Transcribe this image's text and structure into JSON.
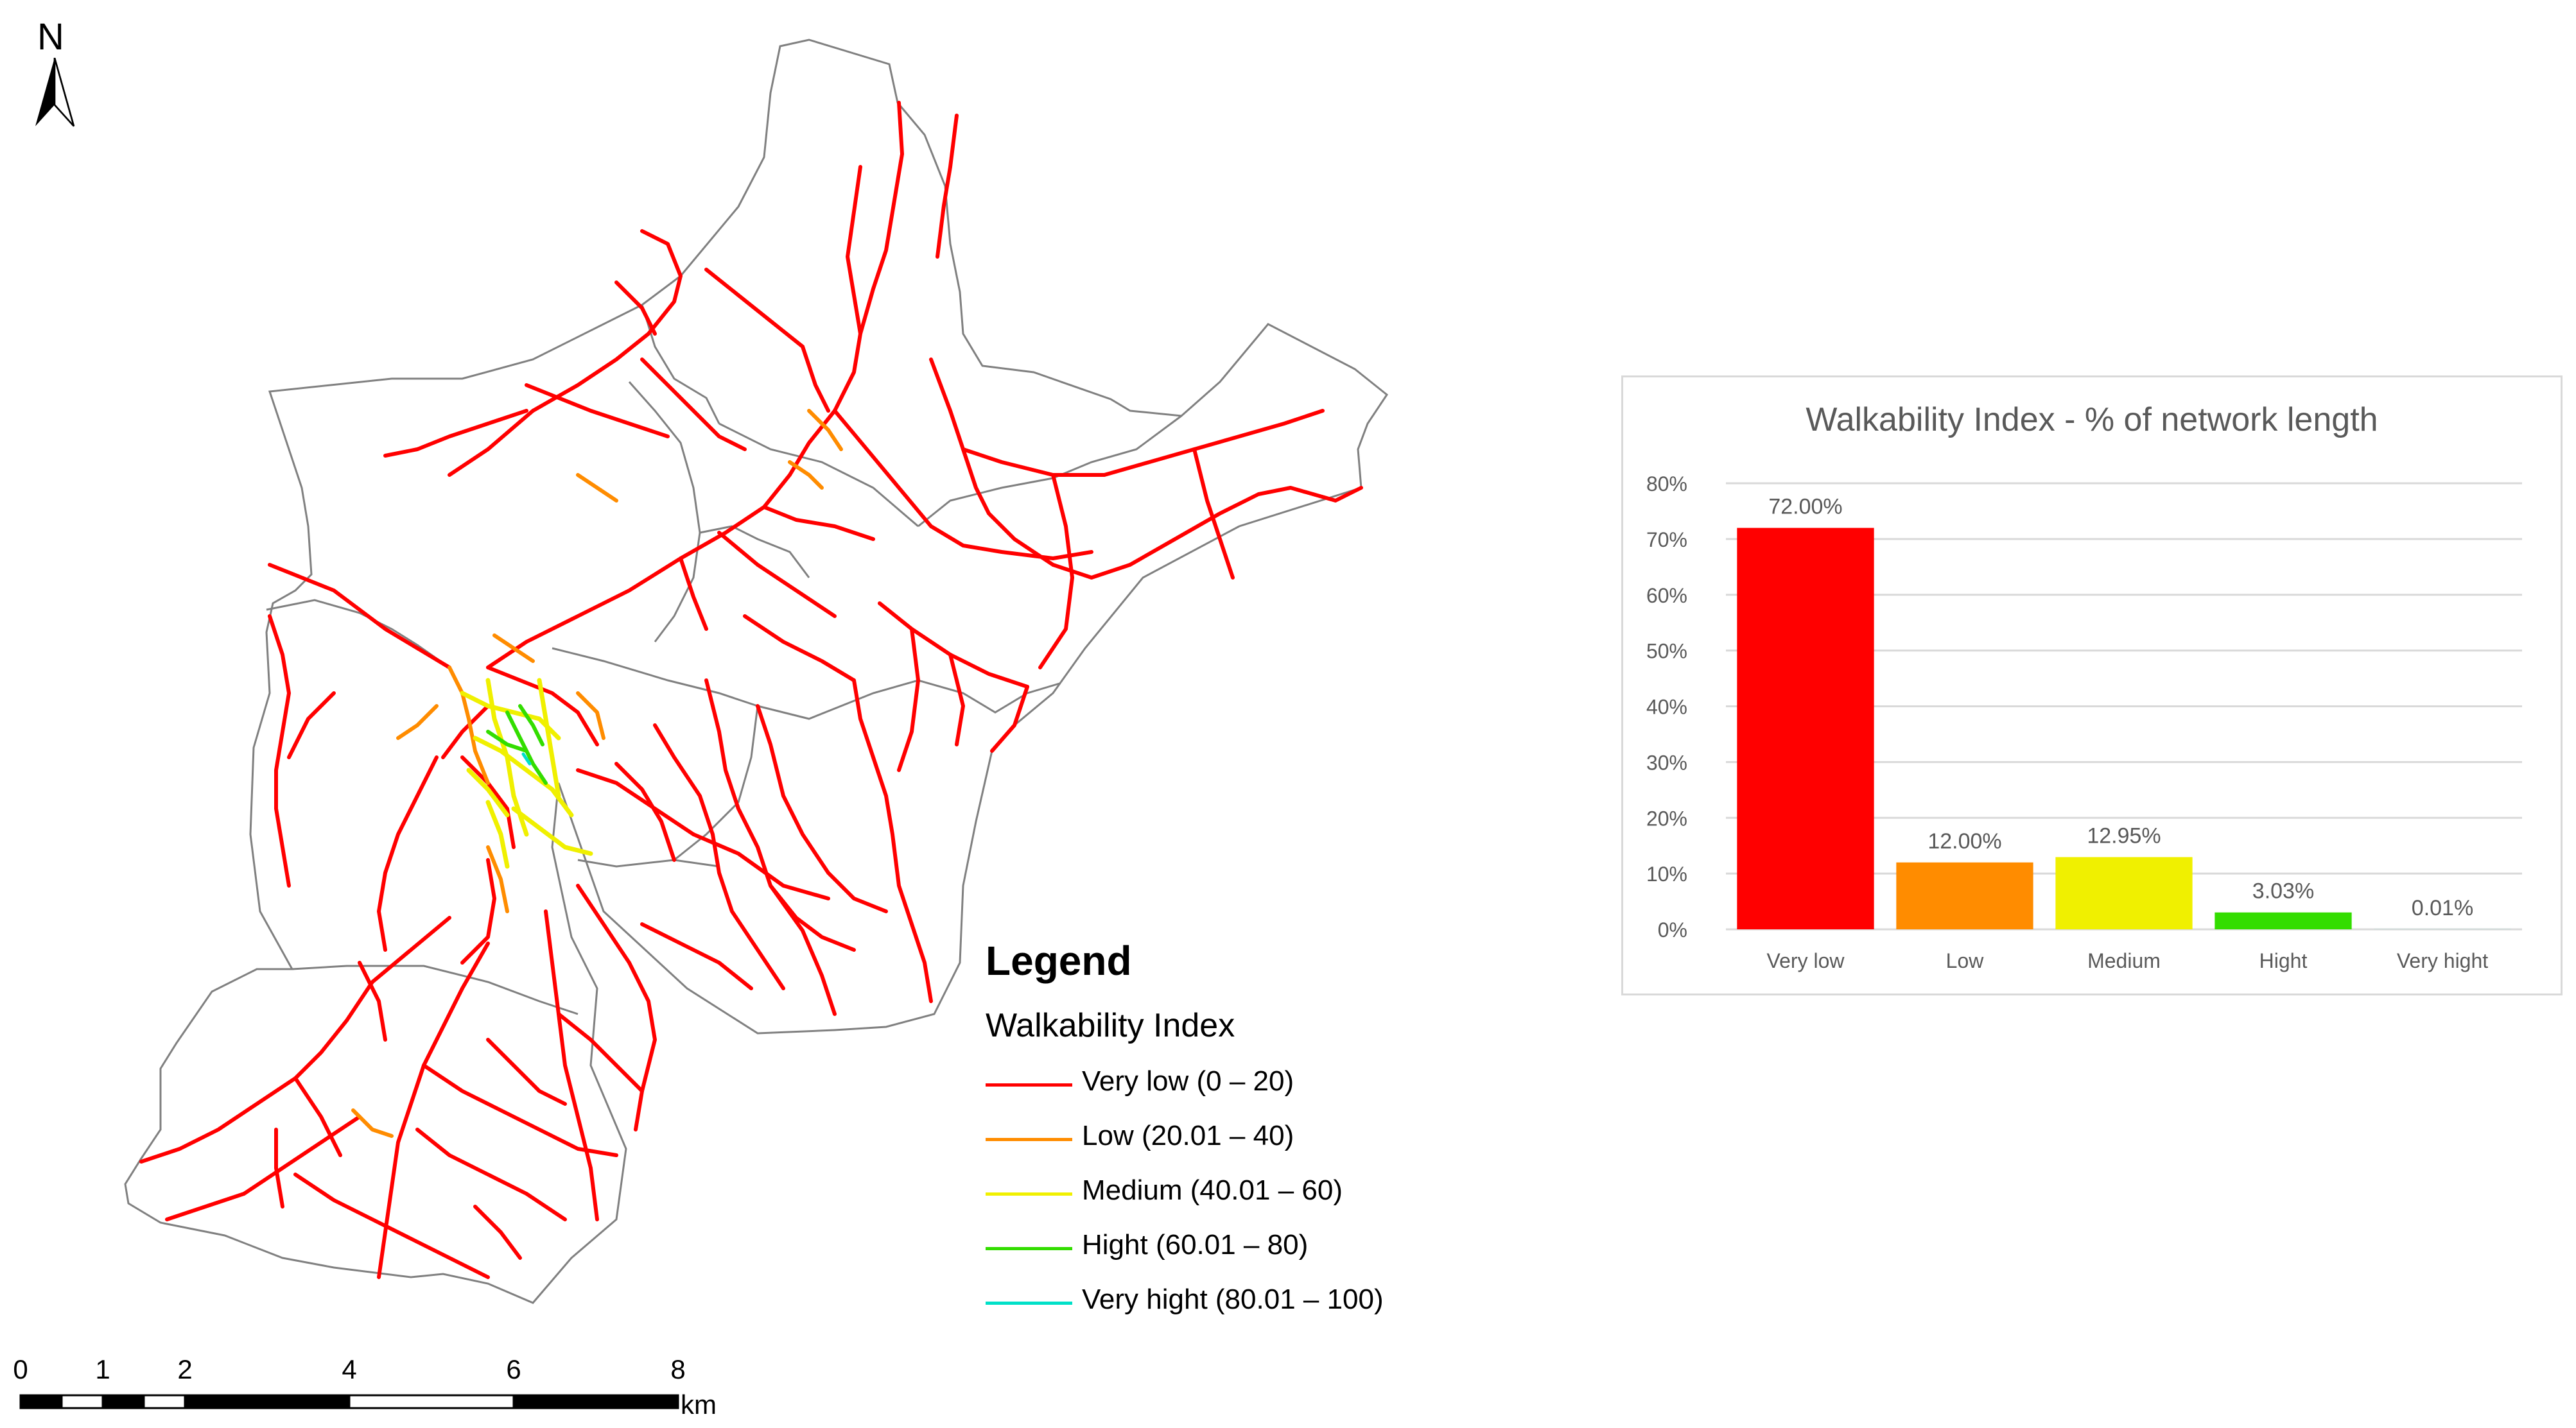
{
  "north_arrow": {
    "label": "N"
  },
  "legend": {
    "title": "Legend",
    "subtitle": "Walkability Index",
    "items": [
      {
        "label": "Very low (0 – 20)",
        "color": "#ff0000"
      },
      {
        "label": "Low (20.01 – 40)",
        "color": "#ff8c00"
      },
      {
        "label": "Medium (40.01 – 60)",
        "color": "#f0f000"
      },
      {
        "label": "Hight (60.01 – 80)",
        "color": "#33dd00"
      },
      {
        "label": "Very hight (80.01 – 100)",
        "color": "#00e0c8"
      }
    ]
  },
  "scale_bar": {
    "ticks": [
      "0",
      "1",
      "2",
      "4",
      "6",
      "8"
    ],
    "tick_values": [
      0,
      1,
      2,
      4,
      6,
      8
    ],
    "unit": "km"
  },
  "chart_data": {
    "type": "bar",
    "title": "Walkability Index - % of network length",
    "categories": [
      "Very low",
      "Low",
      "Medium",
      "Hight",
      "Very hight"
    ],
    "values": [
      72.0,
      12.0,
      12.95,
      3.03,
      0.01
    ],
    "data_labels": [
      "72.00%",
      "12.00%",
      "12.95%",
      "3.03%",
      "0.01%"
    ],
    "colors": [
      "#ff0000",
      "#ff8c00",
      "#f0f000",
      "#33dd00",
      "#00e0c8"
    ],
    "yticks": [
      "0%",
      "10%",
      "20%",
      "30%",
      "40%",
      "50%",
      "60%",
      "70%",
      "80%"
    ],
    "ylim": [
      0,
      80
    ],
    "grid": true,
    "xlabel": "",
    "ylabel": ""
  }
}
